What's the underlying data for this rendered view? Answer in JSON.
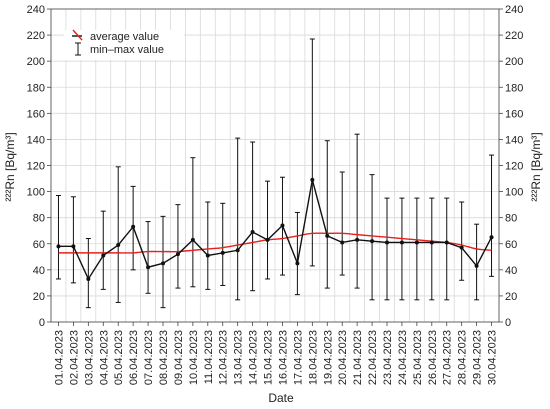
{
  "chart_data": {
    "type": "line",
    "xlabel": "Date",
    "ylabel": "²²²Rn [Bq/m³]",
    "ylim": [
      0,
      240
    ],
    "yticks": [
      0,
      20,
      40,
      60,
      80,
      100,
      120,
      140,
      160,
      180,
      200,
      220,
      240
    ],
    "grid": true,
    "legend": {
      "position": "top-left",
      "entries": [
        "average value",
        "min–max value"
      ]
    },
    "categories": [
      "01.04.2023",
      "02.04.2023",
      "03.04.2023",
      "04.04.2023",
      "05.04.2023",
      "06.04.2023",
      "07.04.2023",
      "08.04.2023",
      "09.04.2023",
      "10.04.2023",
      "11.04.2023",
      "12.04.2023",
      "13.04.2023",
      "14.04.2023",
      "15.04.2023",
      "16.04.2023",
      "17.04.2023",
      "18.04.2023",
      "19.04.2023",
      "20.04.2023",
      "21.04.2023",
      "22.04.2023",
      "23.04.2023",
      "24.04.2023",
      "25.04.2023",
      "26.04.2023",
      "27.04.2023",
      "28.04.2023",
      "29.04.2023",
      "30.04.2023"
    ],
    "series": [
      {
        "name": "average value",
        "values": [
          58,
          58,
          33,
          51,
          59,
          73,
          42,
          45,
          52,
          63,
          51,
          53,
          55,
          69,
          63,
          74,
          45,
          109,
          66,
          61,
          63,
          62,
          61,
          61,
          61,
          61,
          61,
          57,
          43,
          65
        ]
      },
      {
        "name": "min–max value",
        "min": [
          33,
          30,
          11,
          25,
          15,
          40,
          22,
          11,
          26,
          27,
          25,
          28,
          17,
          24,
          33,
          36,
          21,
          43,
          26,
          36,
          26,
          17,
          17,
          17,
          17,
          17,
          17,
          32,
          17,
          35
        ],
        "max": [
          97,
          96,
          64,
          85,
          119,
          104,
          77,
          81,
          90,
          126,
          92,
          91,
          141,
          138,
          108,
          111,
          84,
          217,
          139,
          115,
          144,
          113,
          95,
          95,
          95,
          95,
          95,
          92,
          75,
          128
        ]
      }
    ],
    "trend": [
      53,
      53,
      53,
      53,
      53,
      53,
      54,
      54,
      54,
      55,
      56,
      57,
      59,
      61,
      63,
      64,
      66,
      68,
      68,
      68,
      67,
      66,
      65,
      64,
      63,
      62,
      61,
      59,
      56,
      55
    ]
  }
}
